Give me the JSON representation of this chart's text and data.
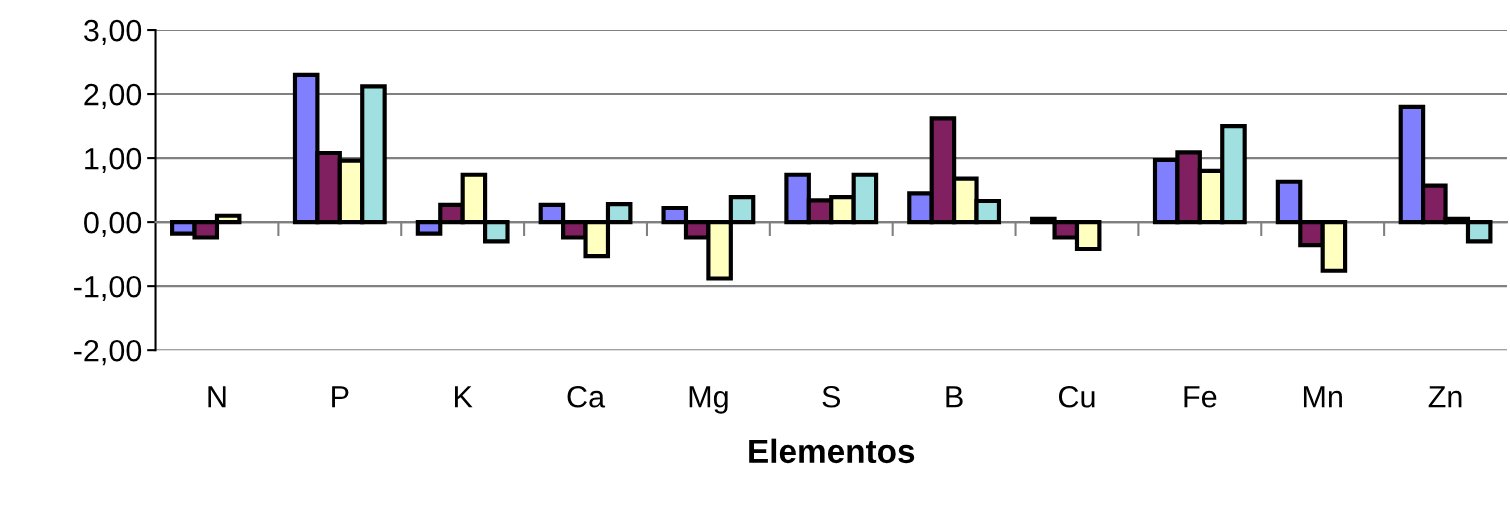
{
  "chart_data": {
    "type": "bar",
    "xlabel": "Elementos",
    "categories": [
      "N",
      "P",
      "K",
      "Ca",
      "Mg",
      "S",
      "B",
      "Cu",
      "Fe",
      "Mn",
      "Zn"
    ],
    "series": [
      {
        "color": "#8080ff",
        "values": [
          -0.18,
          2.3,
          -0.18,
          0.27,
          0.22,
          0.74,
          0.45,
          0.05,
          0.97,
          0.63,
          1.8
        ]
      },
      {
        "color": "#802060",
        "values": [
          -0.24,
          1.08,
          0.27,
          -0.24,
          -0.24,
          0.34,
          1.62,
          -0.24,
          1.09,
          -0.36,
          0.57
        ]
      },
      {
        "color": "#ffffc0",
        "values": [
          0.1,
          0.96,
          0.74,
          -0.53,
          -0.88,
          0.39,
          0.68,
          -0.42,
          0.8,
          -0.76,
          0.05
        ]
      },
      {
        "color": "#a0e0e0",
        "values": [
          null,
          2.12,
          -0.3,
          0.28,
          0.39,
          0.74,
          0.33,
          null,
          1.5,
          null,
          -0.3
        ]
      }
    ],
    "ylim": [
      -2,
      3
    ],
    "yticks": [
      {
        "value": -2,
        "label": "-2,00"
      },
      {
        "value": -1,
        "label": "-1,00"
      },
      {
        "value": 0,
        "label": "0,00"
      },
      {
        "value": 1,
        "label": "1,00"
      },
      {
        "value": 2,
        "label": "2,00"
      },
      {
        "value": 3,
        "label": "3,00"
      }
    ],
    "grid": "y",
    "legend": false
  }
}
